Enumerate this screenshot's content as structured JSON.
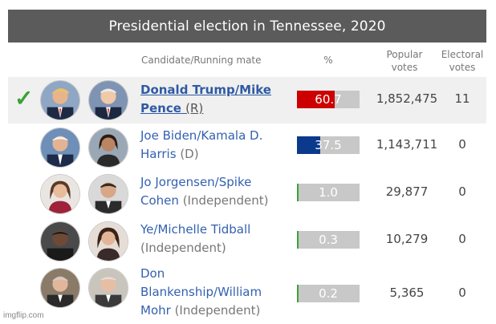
{
  "title": "Presidential election in Tennessee, 2020",
  "headers": {
    "candidate": "Candidate/Running mate",
    "percent": "%",
    "popular_line1": "Popular",
    "popular_line2": "votes",
    "electoral_line1": "Electoral",
    "electoral_line2": "votes"
  },
  "winner_mark": "✓",
  "rows": [
    {
      "line1": "Donald Trump/Mike",
      "line2": "Pence",
      "party": "(R)",
      "percent": 60.7,
      "percent_label": "60.7",
      "votes": "1,852,475",
      "electoral": "11",
      "bar_color": "#cc0000",
      "winner": true
    },
    {
      "line1": "Joe Biden/Kamala D.",
      "line2": "Harris",
      "party": "(D)",
      "percent": 37.5,
      "percent_label": "37.5",
      "votes": "1,143,711",
      "electoral": "0",
      "bar_color": "#0b3a8c",
      "winner": false
    },
    {
      "line1": "Jo Jorgensen/Spike",
      "line2": "Cohen",
      "party": "(Independent)",
      "percent": 1.0,
      "percent_label": "1.0",
      "votes": "29,877",
      "electoral": "0",
      "bar_color": "#3aa335",
      "winner": false
    },
    {
      "line1": "Ye/Michelle Tidball",
      "line2": "",
      "party": "(Independent)",
      "percent": 0.3,
      "percent_label": "0.3",
      "votes": "10,279",
      "electoral": "0",
      "bar_color": "#3aa335",
      "winner": false
    },
    {
      "line1": "Don",
      "line2": "Blankenship/William",
      "line3": "Mohr",
      "party": "(Independent)",
      "percent": 0.2,
      "percent_label": "0.2",
      "votes": "5,365",
      "electoral": "0",
      "bar_color": "#3aa335",
      "winner": false
    }
  ],
  "watermark": "imgflip.com"
}
